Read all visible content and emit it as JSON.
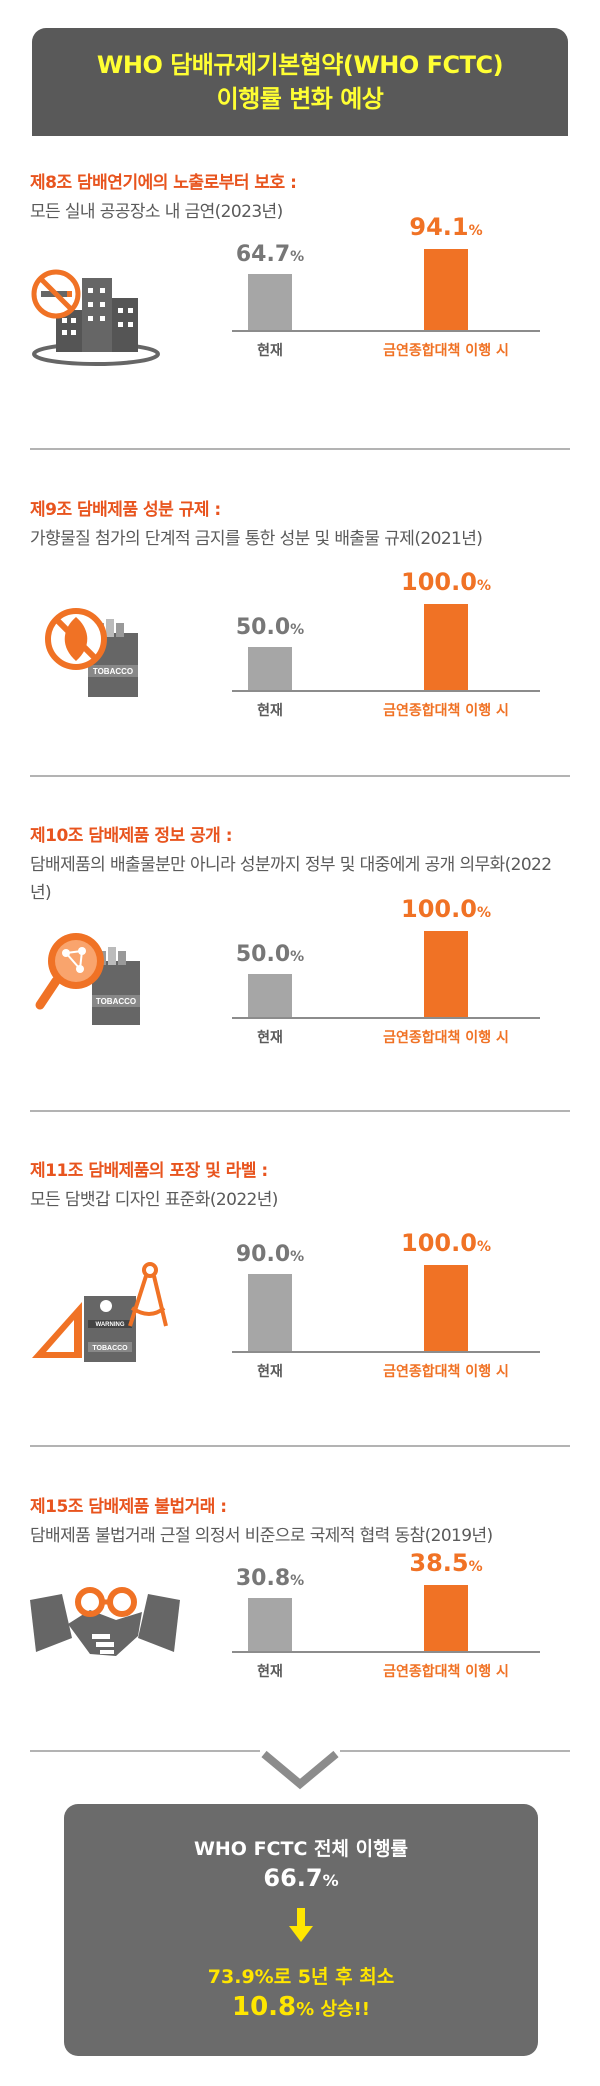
{
  "header": {
    "title_line1": "WHO 담배규제기본협약(WHO FCTC)",
    "title_line2": "이행률 변화 예상"
  },
  "labels": {
    "current": "현재",
    "target": "금연종합대책 이행 시"
  },
  "chart_data": [
    {
      "type": "bar",
      "title": "제8조 담배연기에의 노출로부터 보호 :",
      "subtitle": "모든 실내 공공장소 내 금연(2023년)",
      "categories": [
        "현재",
        "금연종합대책 이행 시"
      ],
      "values": [
        64.7,
        94.1
      ],
      "value_labels": [
        "64.7",
        "94.1"
      ],
      "unit": "%",
      "ylim": [
        0,
        100
      ]
    },
    {
      "type": "bar",
      "title": "제9조 담배제품 성분 규제 :",
      "subtitle": "가향물질 첨가의 단계적 금지를 통한 성분 및 배출물 규제(2021년)",
      "categories": [
        "현재",
        "금연종합대책 이행 시"
      ],
      "values": [
        50.0,
        100.0
      ],
      "value_labels": [
        "50.0",
        "100.0"
      ],
      "unit": "%",
      "ylim": [
        0,
        100
      ]
    },
    {
      "type": "bar",
      "title": "제10조 담배제품 정보 공개 :",
      "subtitle": "담배제품의 배출물분만 아니라 성분까지 정부 및 대중에게 공개 의무화(2022년)",
      "categories": [
        "현재",
        "금연종합대책 이행 시"
      ],
      "values": [
        50.0,
        100.0
      ],
      "value_labels": [
        "50.0",
        "100.0"
      ],
      "unit": "%",
      "ylim": [
        0,
        100
      ]
    },
    {
      "type": "bar",
      "title": "제11조 담배제품의 포장 및 라벨 :",
      "subtitle": "모든 담뱃갑 디자인 표준화(2022년)",
      "categories": [
        "현재",
        "금연종합대책 이행 시"
      ],
      "values": [
        90.0,
        100.0
      ],
      "value_labels": [
        "90.0",
        "100.0"
      ],
      "unit": "%",
      "ylim": [
        0,
        100
      ]
    },
    {
      "type": "bar",
      "title": "제15조 담배제품 불법거래 :",
      "subtitle": "담배제품 불법거래 근절 의정서 비준으로 국제적 협력 동참(2019년)",
      "categories": [
        "현재",
        "금연종합대책 이행 시"
      ],
      "values": [
        30.8,
        38.5
      ],
      "value_labels": [
        "30.8",
        "38.5"
      ],
      "unit": "%",
      "ylim": [
        0,
        50
      ]
    }
  ],
  "icons": [
    "no-smoking-building-icon",
    "no-smoking-leaf-tobacco-icon",
    "magnifier-tobacco-icon",
    "warning-pack-drafting-tools-icon",
    "handshake-handcuffs-icon"
  ],
  "pack_text": {
    "tobacco": "TOBACCO",
    "warning": "WARNING"
  },
  "summary": {
    "line1": "WHO FCTC 전체 이행률",
    "total_value": "66.7",
    "unit": "%",
    "line3": "73.9%로 5년 후 최소",
    "rise_value": "10.8",
    "rise_suffix": "% 상승!!"
  },
  "colors": {
    "header_bg": "#595959",
    "header_text": "#ffff33",
    "accent": "#f07225",
    "title_red": "#e8541e",
    "current_bar": "#a6a6a6",
    "summary_bg": "#6b6b6b",
    "summary_highlight": "#ffe600"
  }
}
